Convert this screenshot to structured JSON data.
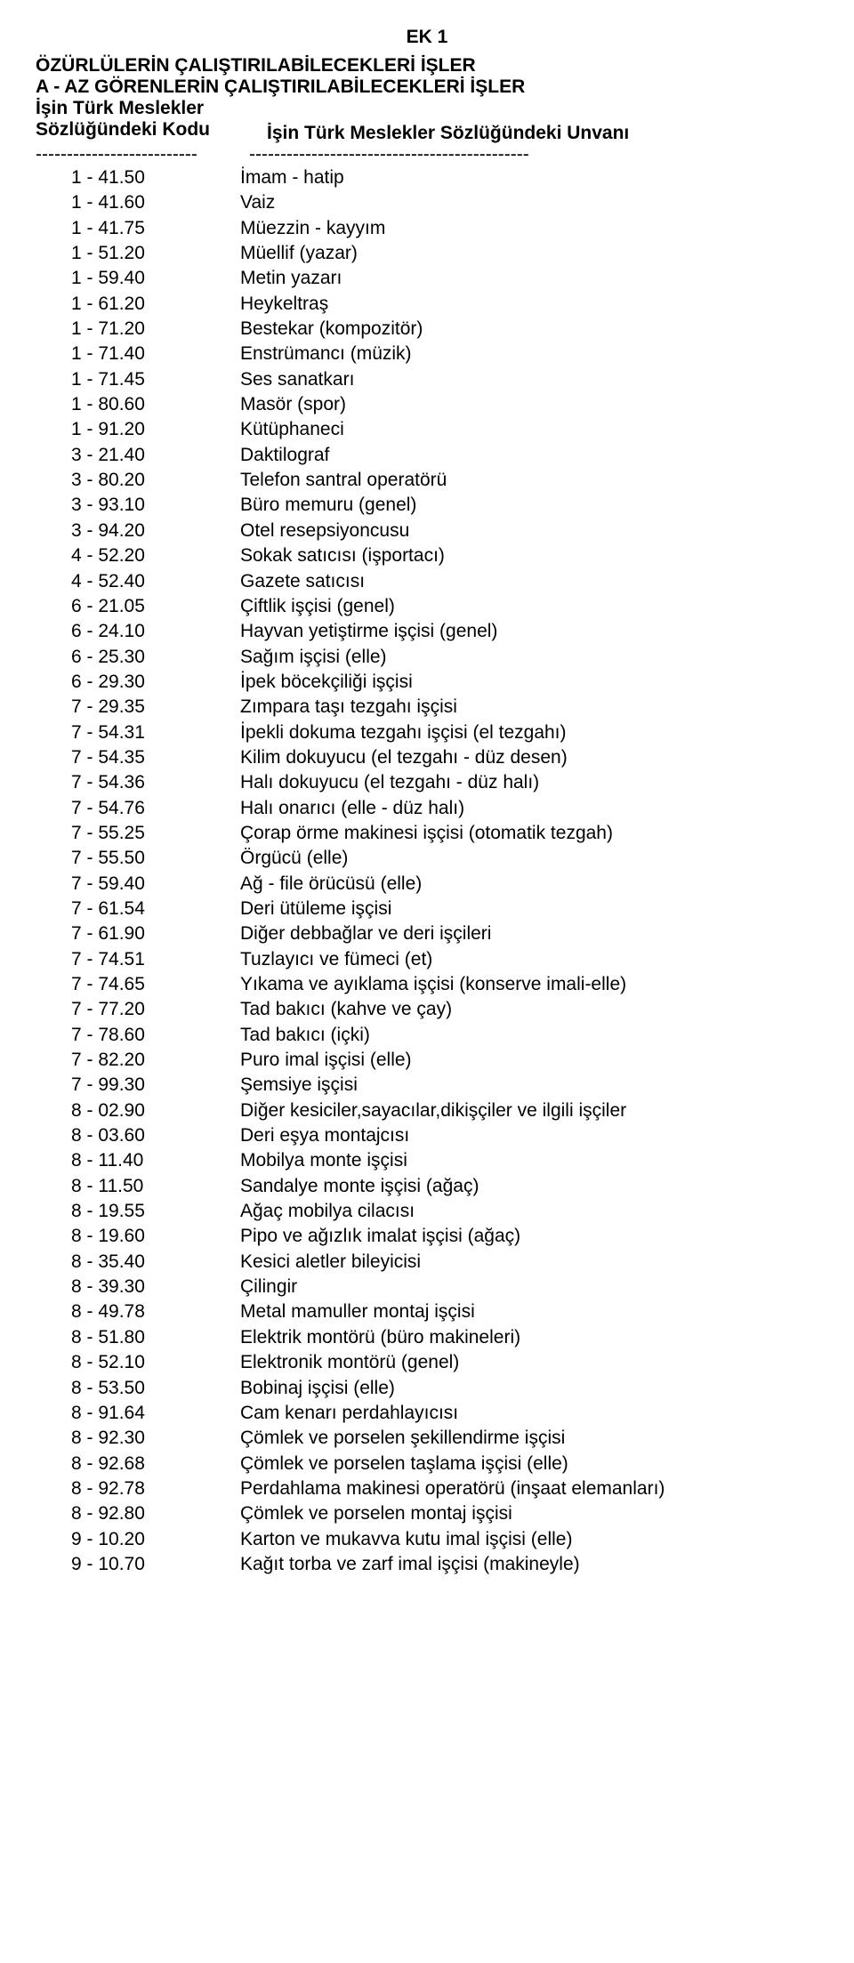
{
  "ek_title": "EK 1",
  "main_title": "ÖZÜRLÜLERİN ÇALIŞTIRILABİLECEKLERİ İŞLER",
  "sub_title": "A - AZ GÖRENLERİN ÇALIŞTIRILABİLECEKLERİ İŞLER",
  "header_left_line1": "İşin Türk Meslekler",
  "header_left_line2": "Sözlüğündeki Kodu",
  "header_right": "İşin Türk Meslekler Sözlüğündeki Unvanı",
  "sep_left": "--------------------------",
  "sep_right": "---------------------------------------------",
  "rows": [
    {
      "code": "1 - 41.50",
      "title": "İmam - hatip"
    },
    {
      "code": "1 - 41.60",
      "title": "Vaiz"
    },
    {
      "code": "1 - 41.75",
      "title": "Müezzin - kayyım"
    },
    {
      "code": "1 - 51.20",
      "title": "Müellif (yazar)"
    },
    {
      "code": "1 - 59.40",
      "title": "Metin yazarı"
    },
    {
      "code": "1 - 61.20",
      "title": "Heykeltraş"
    },
    {
      "code": "1 - 71.20",
      "title": "Bestekar (kompozitör)"
    },
    {
      "code": "1 - 71.40",
      "title": "Enstrümancı (müzik)"
    },
    {
      "code": "1 - 71.45",
      "title": "Ses sanatkarı"
    },
    {
      "code": "1 - 80.60",
      "title": "Masör (spor)"
    },
    {
      "code": "1 - 91.20",
      "title": "Kütüphaneci"
    },
    {
      "code": "3 - 21.40",
      "title": "Daktilograf"
    },
    {
      "code": "3 - 80.20",
      "title": "Telefon santral operatörü"
    },
    {
      "code": "3 - 93.10",
      "title": "Büro memuru (genel)"
    },
    {
      "code": "3 - 94.20",
      "title": "Otel resepsiyoncusu"
    },
    {
      "code": "4 - 52.20",
      "title": "Sokak satıcısı (işportacı)"
    },
    {
      "code": "4 - 52.40",
      "title": "Gazete satıcısı"
    },
    {
      "code": "6 - 21.05",
      "title": "Çiftlik işçisi (genel)"
    },
    {
      "code": "6 - 24.10",
      "title": "Hayvan yetiştirme işçisi (genel)"
    },
    {
      "code": "6 - 25.30",
      "title": "Sağım işçisi (elle)"
    },
    {
      "code": "6 - 29.30",
      "title": "İpek böcekçiliği işçisi"
    },
    {
      "code": "7 - 29.35",
      "title": "Zımpara taşı tezgahı işçisi"
    },
    {
      "code": "7 - 54.31",
      "title": "İpekli dokuma tezgahı işçisi (el tezgahı)"
    },
    {
      "code": "7 - 54.35",
      "title": "Kilim dokuyucu (el tezgahı - düz desen)"
    },
    {
      "code": "7 - 54.36",
      "title": "Halı dokuyucu (el tezgahı - düz halı)"
    },
    {
      "code": "7 - 54.76",
      "title": "Halı onarıcı (elle - düz halı)"
    },
    {
      "code": "7 - 55.25",
      "title": "Çorap örme makinesi işçisi (otomatik tezgah)"
    },
    {
      "code": "7 - 55.50",
      "title": "Örgücü (elle)"
    },
    {
      "code": "7 - 59.40",
      "title": "Ağ - file örücüsü (elle)"
    },
    {
      "code": "7 - 61.54",
      "title": "Deri ütüleme işçisi"
    },
    {
      "code": "7 - 61.90",
      "title": "Diğer debbağlar ve deri işçileri"
    },
    {
      "code": "7 - 74.51",
      "title": "Tuzlayıcı ve fümeci (et)"
    },
    {
      "code": "7 - 74.65",
      "title": "Yıkama ve ayıklama işçisi (konserve imali-elle)"
    },
    {
      "code": "7 - 77.20",
      "title": "Tad bakıcı (kahve ve çay)"
    },
    {
      "code": "7 - 78.60",
      "title": "Tad bakıcı (içki)"
    },
    {
      "code": "7 - 82.20",
      "title": "Puro imal işçisi (elle)"
    },
    {
      "code": "7 - 99.30",
      "title": "Şemsiye işçisi"
    },
    {
      "code": "8 - 02.90",
      "title": "Diğer kesiciler,sayacılar,dikişçiler ve ilgili  işçiler"
    },
    {
      "code": "8 - 03.60",
      "title": "Deri eşya montajcısı"
    },
    {
      "code": "8 - 11.40",
      "title": "Mobilya monte işçisi"
    },
    {
      "code": "8 - 11.50",
      "title": "Sandalye monte işçisi (ağaç)"
    },
    {
      "code": "8 - 19.55",
      "title": "Ağaç mobilya cilacısı"
    },
    {
      "code": "8 - 19.60",
      "title": "Pipo ve ağızlık imalat işçisi (ağaç)"
    },
    {
      "code": "8 - 35.40",
      "title": "Kesici aletler bileyicisi"
    },
    {
      "code": "8 - 39.30",
      "title": "Çilingir"
    },
    {
      "code": "8 - 49.78",
      "title": "Metal mamuller montaj işçisi"
    },
    {
      "code": "8 - 51.80",
      "title": "Elektrik montörü (büro makineleri)"
    },
    {
      "code": "8 - 52.10",
      "title": "Elektronik montörü (genel)"
    },
    {
      "code": "8 - 53.50",
      "title": "Bobinaj işçisi (elle)"
    },
    {
      "code": "8 - 91.64",
      "title": "Cam kenarı perdahlayıcısı"
    },
    {
      "code": "8 - 92.30",
      "title": "Çömlek ve porselen şekillendirme işçisi"
    },
    {
      "code": "8 - 92.68",
      "title": "Çömlek ve porselen taşlama işçisi (elle)"
    },
    {
      "code": "8 - 92.78",
      "title": "Perdahlama makinesi operatörü (inşaat elemanları)"
    },
    {
      "code": "8 - 92.80",
      "title": "Çömlek ve porselen montaj işçisi"
    },
    {
      "code": "9 - 10.20",
      "title": "Karton ve mukavva kutu imal işçisi (elle)"
    },
    {
      "code": "9 - 10.70",
      "title": "Kağıt torba ve zarf imal işçisi (makineyle)"
    }
  ]
}
